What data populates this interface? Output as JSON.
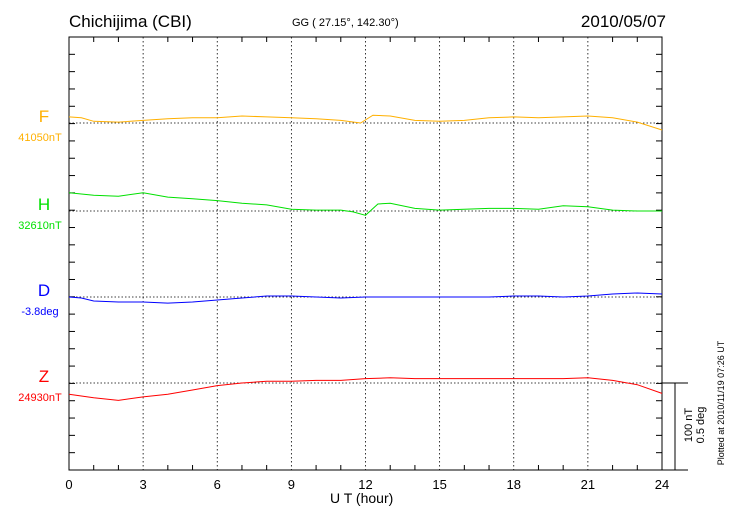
{
  "chart_data": {
    "type": "line",
    "title": "Chichijima (CBI)",
    "subtitle": "GG ( 27.15°, 142.30°)",
    "date": "2010/05/07",
    "xlabel": "U T (hour)",
    "xlim": [
      0,
      24
    ],
    "xticks": [
      "0",
      "3",
      "6",
      "9",
      "12",
      "15",
      "18",
      "21",
      "24"
    ],
    "grid": "dotted vertical every 3 hours; dotted baseline per series",
    "scale_bar": {
      "line1": "100 nT",
      "line2": "0.5 deg"
    },
    "plotted_note": "Plotted at 2010/11/19 07:26 UT",
    "series": [
      {
        "name": "F",
        "baseline_label": "41050nT",
        "unit": "nT",
        "color": "#ffb000",
        "points": [
          [
            0,
            7
          ],
          [
            0.5,
            6
          ],
          [
            1,
            2
          ],
          [
            2,
            1
          ],
          [
            3,
            3
          ],
          [
            4,
            5
          ],
          [
            5,
            6
          ],
          [
            6,
            6
          ],
          [
            7,
            8
          ],
          [
            8,
            7
          ],
          [
            9,
            6
          ],
          [
            10,
            5
          ],
          [
            11,
            3
          ],
          [
            11.8,
            0
          ],
          [
            12.3,
            9
          ],
          [
            13,
            8
          ],
          [
            14,
            3
          ],
          [
            15,
            2
          ],
          [
            16,
            3
          ],
          [
            17,
            6
          ],
          [
            18,
            7
          ],
          [
            19,
            6
          ],
          [
            20,
            7
          ],
          [
            21,
            8
          ],
          [
            22,
            6
          ],
          [
            23,
            1
          ],
          [
            24,
            -8
          ]
        ]
      },
      {
        "name": "H",
        "baseline_label": "32610nT",
        "unit": "nT",
        "color": "#00e000",
        "points": [
          [
            0,
            21
          ],
          [
            1,
            18
          ],
          [
            2,
            17
          ],
          [
            3,
            21
          ],
          [
            4,
            16
          ],
          [
            5,
            14
          ],
          [
            6,
            12
          ],
          [
            7,
            9
          ],
          [
            8,
            7
          ],
          [
            9,
            2
          ],
          [
            10,
            1
          ],
          [
            11,
            1
          ],
          [
            11.5,
            -1
          ],
          [
            12,
            -5
          ],
          [
            12.5,
            8
          ],
          [
            13,
            9
          ],
          [
            14,
            3
          ],
          [
            15,
            1
          ],
          [
            16,
            2
          ],
          [
            17,
            3
          ],
          [
            18,
            3
          ],
          [
            19,
            2
          ],
          [
            20,
            6
          ],
          [
            21,
            5
          ],
          [
            22,
            1
          ],
          [
            23,
            0
          ],
          [
            24,
            0
          ]
        ]
      },
      {
        "name": "D",
        "baseline_label": "-3.8deg",
        "unit": "deg",
        "color": "#0000ff",
        "points": [
          [
            0,
            0
          ],
          [
            0.5,
            -0.006
          ],
          [
            1,
            -0.023
          ],
          [
            2,
            -0.029
          ],
          [
            3,
            -0.029
          ],
          [
            4,
            -0.035
          ],
          [
            5,
            -0.029
          ],
          [
            6,
            -0.017
          ],
          [
            7,
            -0.006
          ],
          [
            8,
            0.006
          ],
          [
            9,
            0.006
          ],
          [
            10,
            0
          ],
          [
            11,
            -0.006
          ],
          [
            12,
            0
          ],
          [
            13,
            0
          ],
          [
            14,
            0
          ],
          [
            15,
            0
          ],
          [
            16,
            0
          ],
          [
            17,
            0
          ],
          [
            18,
            0.006
          ],
          [
            19,
            0.006
          ],
          [
            20,
            0
          ],
          [
            21,
            0.006
          ],
          [
            22,
            0.017
          ],
          [
            23,
            0.023
          ],
          [
            24,
            0.017
          ]
        ]
      },
      {
        "name": "Z",
        "baseline_label": "24930nT",
        "unit": "nT",
        "color": "#ff0000",
        "points": [
          [
            0,
            -13
          ],
          [
            1,
            -17
          ],
          [
            2,
            -20
          ],
          [
            3,
            -16
          ],
          [
            4,
            -13
          ],
          [
            5,
            -8
          ],
          [
            6,
            -3
          ],
          [
            7,
            0
          ],
          [
            8,
            2
          ],
          [
            9,
            2
          ],
          [
            10,
            3
          ],
          [
            11,
            3
          ],
          [
            12,
            5
          ],
          [
            13,
            6
          ],
          [
            14,
            5
          ],
          [
            15,
            5
          ],
          [
            16,
            5
          ],
          [
            17,
            5
          ],
          [
            18,
            5
          ],
          [
            19,
            5
          ],
          [
            20,
            5
          ],
          [
            21,
            6
          ],
          [
            22,
            3
          ],
          [
            23,
            -2
          ],
          [
            24,
            -12
          ]
        ]
      }
    ]
  }
}
